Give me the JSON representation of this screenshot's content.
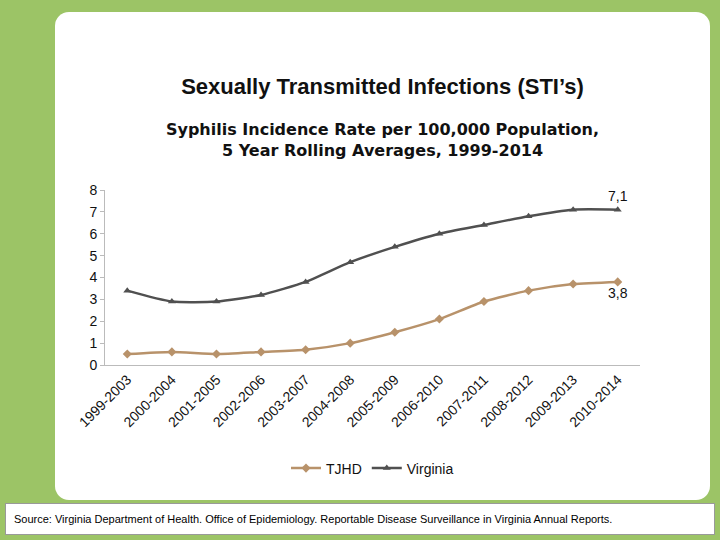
{
  "slide": {
    "heading": "Sexually Transmitted Infections (STI’s)",
    "source": "Source: Virginia Department of Health. Office of Epidemiology. Reportable Disease Surveillance in Virginia Annual Reports."
  },
  "chart_data": {
    "type": "line",
    "title": "Syphilis Incidence Rate per 100,000 Population,\n5 Year Rolling Averages, 1999-2014",
    "categories": [
      "1999-2003",
      "2000-2004",
      "2001-2005",
      "2002-2006",
      "2003-2007",
      "2004-2008",
      "2005-2009",
      "2006-2010",
      "2007-2011",
      "2008-2012",
      "2009-2013",
      "2010-2014"
    ],
    "series": [
      {
        "name": "TJHD",
        "color": "#b8926a",
        "marker": "diamond",
        "values": [
          0.5,
          0.6,
          0.5,
          0.6,
          0.7,
          1.0,
          1.5,
          2.1,
          2.9,
          3.4,
          3.7,
          3.8
        ],
        "value_labels": [
          null,
          null,
          null,
          null,
          null,
          null,
          null,
          null,
          null,
          null,
          null,
          "3,8"
        ]
      },
      {
        "name": "Virginia",
        "color": "#505050",
        "marker": "triangle-up",
        "values": [
          3.4,
          2.9,
          2.9,
          3.2,
          3.8,
          4.7,
          5.4,
          6.0,
          6.4,
          6.8,
          7.1,
          7.1
        ],
        "value_labels": [
          null,
          null,
          null,
          null,
          null,
          null,
          null,
          null,
          null,
          null,
          null,
          "7,1"
        ]
      }
    ],
    "ylim": [
      0,
      8
    ],
    "yticks": [
      0,
      1,
      2,
      3,
      4,
      5,
      6,
      7,
      8
    ],
    "grid": false,
    "legend": "bottom"
  }
}
